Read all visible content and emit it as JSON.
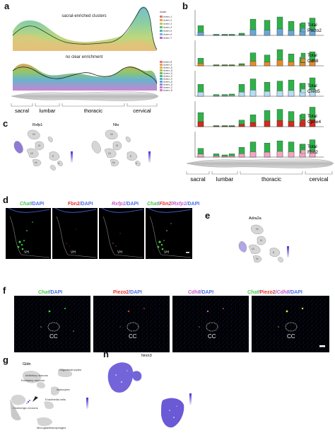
{
  "panels": {
    "a": "a",
    "b": "b",
    "c": "c",
    "d": "d",
    "e": "e",
    "f": "f",
    "g": "g",
    "h": "h"
  },
  "panel_a": {
    "top_title": "sacral-enriched clusters",
    "bottom_title": "no clear enrichment",
    "legend_top_title": "cluster",
    "legend_top": [
      "cluster_1",
      "cluster_2",
      "cluster_3",
      "cluster_4",
      "cluster_5",
      "cluster_6",
      "cluster_7"
    ],
    "legend_bottom": [
      "cluster_8",
      "cluster_9",
      "cluster_10",
      "cluster_11",
      "cluster_12",
      "cluster_13",
      "cluster_14",
      "cluster_15",
      "cluster_16",
      "cluster_17",
      "cluster_18"
    ],
    "regions": [
      "sacral",
      "lumbar",
      "thoracic",
      "cervical"
    ]
  },
  "panel_b": {
    "rows": [
      {
        "total": "Total",
        "gene": "Piezo2",
        "gene_color": "#6aa7d8"
      },
      {
        "total": "Total",
        "gene": "Cdh8",
        "gene_color": "#e58a2b"
      },
      {
        "total": "Total",
        "gene": "Creb5",
        "gene_color": "#b8dcf2"
      },
      {
        "total": "Total",
        "gene": "Cpne4",
        "gene_color": "#d62a1f"
      },
      {
        "total": "Total",
        "gene": "Fbn2",
        "gene_color": "#f2a6c4"
      }
    ],
    "total_color": "#2fb14a",
    "regions": [
      "sacral",
      "lumbar",
      "thoracic",
      "cervical"
    ]
  },
  "panel_c": {
    "left_title": "Rxfp1",
    "right_title": "Nts"
  },
  "panel_d": {
    "labels": [
      [
        {
          "t": "Chat",
          "c": "#48c84a",
          "i": true
        },
        {
          "t": "/DAPI",
          "c": "#4a6ee8",
          "i": false
        }
      ],
      [
        {
          "t": "Fbn2",
          "c": "#e8332a",
          "i": false
        },
        {
          "t": "/DAPI",
          "c": "#4a6ee8",
          "i": false
        }
      ],
      [
        {
          "t": "Rxfp1",
          "c": "#c65cc9",
          "i": true
        },
        {
          "t": "/DAPI",
          "c": "#4a6ee8",
          "i": false
        }
      ],
      [
        {
          "t": "Chat",
          "c": "#48c84a",
          "i": true
        },
        {
          "t": "/",
          "c": "#4a6ee8",
          "i": false
        },
        {
          "t": "Fbn2",
          "c": "#e8332a",
          "i": true
        },
        {
          "t": "/",
          "c": "#4a6ee8",
          "i": false
        },
        {
          "t": "Rxfp1",
          "c": "#c65cc9",
          "i": true
        },
        {
          "t": "/DAPI",
          "c": "#4a6ee8",
          "i": false
        }
      ]
    ],
    "vh": "VH"
  },
  "panel_e": {
    "title": "Adra2a"
  },
  "panel_f": {
    "labels": [
      [
        {
          "t": "Chat",
          "c": "#48c84a",
          "i": true
        },
        {
          "t": "/DAPI",
          "c": "#4a6ee8",
          "i": false
        }
      ],
      [
        {
          "t": "Piezo2",
          "c": "#e8332a",
          "i": false
        },
        {
          "t": "/DAPI",
          "c": "#4a6ee8",
          "i": false
        }
      ],
      [
        {
          "t": "Cdh8",
          "c": "#c65cc9",
          "i": true
        },
        {
          "t": "/DAPI",
          "c": "#4a6ee8",
          "i": false
        }
      ],
      [
        {
          "t": "Chat",
          "c": "#48c84a",
          "i": true
        },
        {
          "t": "/",
          "c": "#4a6ee8",
          "i": false
        },
        {
          "t": "Piezo2",
          "c": "#e8332a",
          "i": false
        },
        {
          "t": "/",
          "c": "#4a6ee8",
          "i": false
        },
        {
          "t": "Cdh8",
          "c": "#c65cc9",
          "i": true
        },
        {
          "t": "/DAPI",
          "c": "#4a6ee8",
          "i": false
        }
      ]
    ],
    "cc": "CC"
  },
  "panel_g": {
    "title": "Gldn",
    "labels": [
      "Oligodendrocytes",
      "Inhibitory neurons",
      "Excitatory neurons",
      "Astrocytes",
      "Endothelial cells",
      "Cholinergic neurons",
      "Microglia/Macrophages"
    ]
  },
  "panel_h": {
    "title": "Nrxn3"
  }
}
